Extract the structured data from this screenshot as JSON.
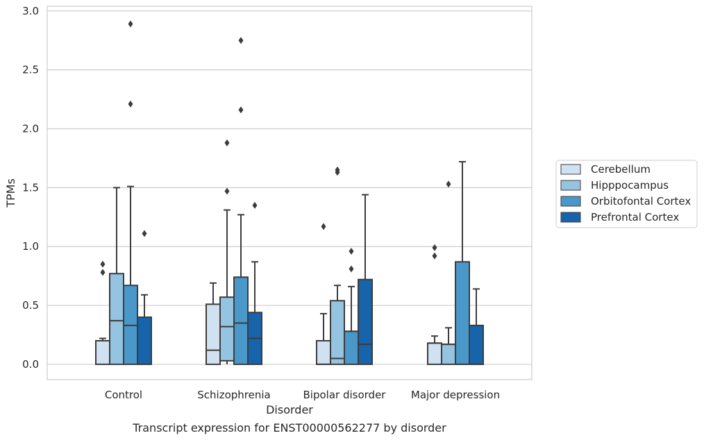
{
  "chart_data": {
    "type": "box",
    "title": "Transcript expression for ENST00000562277 by disorder",
    "xlabel": "Disorder",
    "ylabel": "TPMs",
    "ylim": [
      -0.13,
      3.04
    ],
    "yticks": [
      "0.0",
      "0.5",
      "1.0",
      "1.5",
      "2.0",
      "2.5",
      "3.0"
    ],
    "grid": "horizontal",
    "legend_position": "right",
    "categories": [
      "Control",
      "Schizophrenia",
      "Bipolar disorder",
      "Major depression"
    ],
    "series": [
      {
        "name": "Cerebellum",
        "color": "#d0e1f2",
        "boxes": [
          {
            "low": 0.0,
            "q1": 0.0,
            "median": 0.2,
            "q3": 0.2,
            "high": 0.22,
            "outliers": [
              0.78,
              0.85
            ]
          },
          {
            "low": 0.0,
            "q1": 0.0,
            "median": 0.12,
            "q3": 0.51,
            "high": 0.69,
            "outliers": []
          },
          {
            "low": 0.0,
            "q1": 0.0,
            "median": 0.0,
            "q3": 0.2,
            "high": 0.43,
            "outliers": [
              1.17
            ]
          },
          {
            "low": 0.0,
            "q1": 0.0,
            "median": 0.18,
            "q3": 0.18,
            "high": 0.24,
            "outliers": [
              0.92,
              0.99
            ]
          }
        ]
      },
      {
        "name": "Hipppocampus",
        "color": "#94c4df",
        "boxes": [
          {
            "low": 0.0,
            "q1": 0.0,
            "median": 0.37,
            "q3": 0.77,
            "high": 1.5,
            "outliers": []
          },
          {
            "low": 0.0,
            "q1": 0.03,
            "median": 0.32,
            "q3": 0.57,
            "high": 1.31,
            "outliers": [
              1.47,
              1.88
            ]
          },
          {
            "low": 0.0,
            "q1": 0.0,
            "median": 0.05,
            "q3": 0.54,
            "high": 0.67,
            "outliers": [
              1.63,
              1.65
            ]
          },
          {
            "low": 0.0,
            "q1": 0.0,
            "median": 0.17,
            "q3": 0.17,
            "high": 0.31,
            "outliers": [
              1.53
            ]
          }
        ]
      },
      {
        "name": "Orbitofontal Cortex",
        "color": "#4a98c9",
        "boxes": [
          {
            "low": 0.0,
            "q1": 0.0,
            "median": 0.33,
            "q3": 0.67,
            "high": 1.51,
            "outliers": [
              2.21,
              2.89
            ]
          },
          {
            "low": 0.0,
            "q1": 0.0,
            "median": 0.35,
            "q3": 0.74,
            "high": 1.27,
            "outliers": [
              2.16,
              2.75
            ]
          },
          {
            "low": 0.0,
            "q1": 0.0,
            "median": 0.28,
            "q3": 0.28,
            "high": 0.66,
            "outliers": [
              0.81,
              0.96
            ]
          },
          {
            "low": 0.0,
            "q1": 0.0,
            "median": 0.0,
            "q3": 0.87,
            "high": 1.72,
            "outliers": []
          }
        ]
      },
      {
        "name": "Prefrontal Cortex",
        "color": "#1764ab",
        "boxes": [
          {
            "low": 0.0,
            "q1": 0.0,
            "median": 0.0,
            "q3": 0.4,
            "high": 0.59,
            "outliers": [
              1.11
            ]
          },
          {
            "low": 0.0,
            "q1": 0.0,
            "median": 0.22,
            "q3": 0.44,
            "high": 0.87,
            "outliers": [
              1.35
            ]
          },
          {
            "low": 0.0,
            "q1": 0.0,
            "median": 0.17,
            "q3": 0.72,
            "high": 1.44,
            "outliers": []
          },
          {
            "low": 0.0,
            "q1": 0.0,
            "median": 0.0,
            "q3": 0.33,
            "high": 0.64,
            "outliers": []
          }
        ]
      }
    ]
  }
}
